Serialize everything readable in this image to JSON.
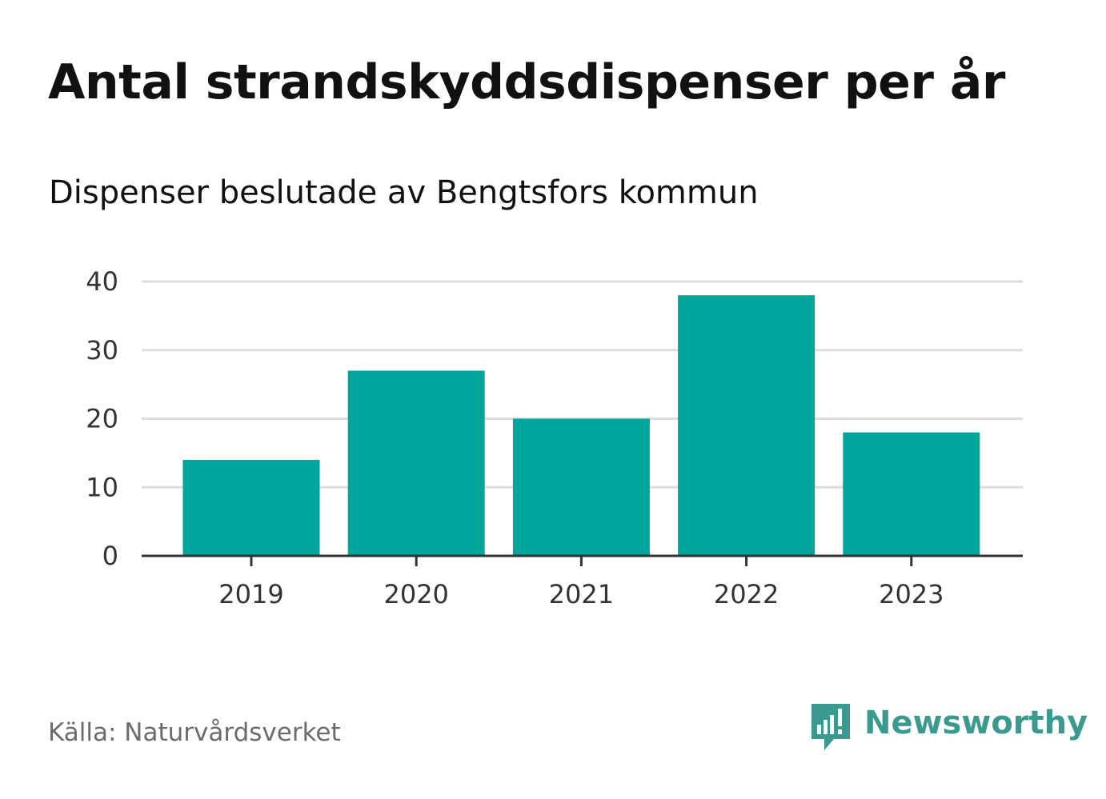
{
  "chart_data": {
    "type": "bar",
    "title": "Antal strandskyddsdispenser per år",
    "subtitle": "Dispenser beslutade av Bengtsfors kommun",
    "categories": [
      "2019",
      "2020",
      "2021",
      "2022",
      "2023"
    ],
    "values": [
      14,
      27,
      20,
      38,
      18
    ],
    "yticks": [
      0,
      10,
      20,
      30,
      40
    ],
    "ylim": [
      0,
      40
    ],
    "xlabel": "",
    "ylabel": "",
    "grid": true,
    "bar_color": "#00a59b",
    "grid_color": "#dddddd",
    "axis_color": "#333333"
  },
  "footer": {
    "source": "Källa: Naturvårdsverket",
    "brand": "Newsworthy",
    "brand_icon": "newsworthy-logo-icon",
    "brand_color": "#3a9a8f"
  }
}
